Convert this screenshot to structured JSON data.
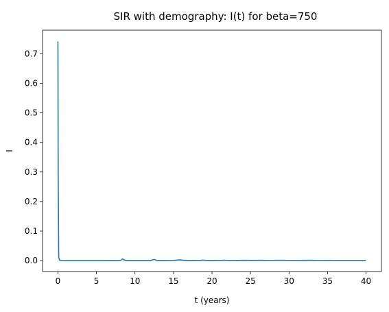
{
  "chart_data": {
    "type": "line",
    "title": "SIR with demography: I(t) for beta=750",
    "xlabel": "t (years)",
    "ylabel": "I",
    "xlim": [
      -2,
      42
    ],
    "ylim": [
      -0.037,
      0.78
    ],
    "x_ticks": [
      0,
      5,
      10,
      15,
      20,
      25,
      30,
      35,
      40
    ],
    "y_ticks": [
      0.0,
      0.1,
      0.2,
      0.3,
      0.4,
      0.5,
      0.6,
      0.7
    ],
    "x_tick_labels": [
      "0",
      "5",
      "10",
      "15",
      "20",
      "25",
      "30",
      "35",
      "40"
    ],
    "y_tick_labels": [
      "0.0",
      "0.1",
      "0.2",
      "0.3",
      "0.4",
      "0.5",
      "0.6",
      "0.7"
    ],
    "grid": false,
    "legend": "none",
    "series": [
      {
        "color": "#1f77b4",
        "x": [
          0,
          0.03,
          0.1,
          0.2,
          0.4,
          1,
          2,
          3,
          4,
          5,
          6,
          7,
          8,
          8.2,
          8.4,
          8.6,
          8.9,
          9.5,
          10,
          11,
          12,
          12.2,
          12.5,
          12.8,
          13.2,
          14,
          15,
          15.5,
          15.8,
          16.2,
          17,
          18.5,
          18.8,
          19.2,
          20,
          21.2,
          21.6,
          22,
          23,
          23.8,
          24.2,
          25,
          26.3,
          26.8,
          27.5,
          28.6,
          29.2,
          30,
          31,
          32,
          33,
          34,
          35,
          36,
          37,
          38,
          39,
          40
        ],
        "values": [
          0.742,
          0.3,
          0.012,
          0.002,
          0.0003,
          0.0001,
          0.0001,
          0.0001,
          0.0001,
          0.0001,
          0.0001,
          0.0002,
          0.0003,
          0.002,
          0.006,
          0.002,
          0.0003,
          0.0002,
          0.0002,
          0.0002,
          0.0003,
          0.002,
          0.004,
          0.001,
          0.0003,
          0.0003,
          0.0005,
          0.0018,
          0.0025,
          0.0012,
          0.0004,
          0.0008,
          0.0016,
          0.0008,
          0.0004,
          0.0008,
          0.0013,
          0.0007,
          0.0005,
          0.0009,
          0.0011,
          0.0006,
          0.0008,
          0.001,
          0.0007,
          0.0008,
          0.0009,
          0.0007,
          0.0007,
          0.0008,
          0.0008,
          0.0007,
          0.0008,
          0.0007,
          0.0007,
          0.0007,
          0.0007,
          0.0007
        ]
      }
    ]
  }
}
